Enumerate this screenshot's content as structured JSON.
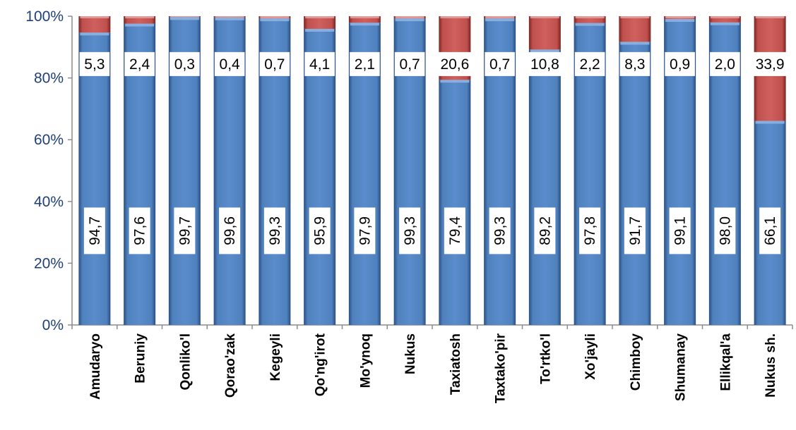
{
  "chart_data": {
    "type": "bar",
    "stacked": true,
    "percent_stacked": true,
    "categories": [
      "Amudaryo",
      "Beruniy",
      "Qonliko'l",
      "Qorao'zak",
      "Kegeyli",
      "Qo'ng'irot",
      "Mo'ynoq",
      "Nukus",
      "Taxiatosh",
      "Taxtako'pir",
      "To'rtko'l",
      "Xo'jayli",
      "Chimboy",
      "Shumanay",
      "Ellikqal'a",
      "Nukus sh."
    ],
    "series": [
      {
        "color": "#4f81bd",
        "values": [
          94.7,
          97.6,
          99.7,
          99.6,
          99.3,
          95.9,
          97.9,
          99.3,
          79.4,
          99.3,
          89.2,
          97.8,
          91.7,
          99.1,
          98.0,
          66.1
        ],
        "labels": [
          "94,7",
          "97,6",
          "99,7",
          "99,6",
          "99,3",
          "95,9",
          "97,9",
          "99,3",
          "79,4",
          "99,3",
          "89,2",
          "97,8",
          "91,7",
          "99,1",
          "98,0",
          "66,1"
        ]
      },
      {
        "color": "#c0504d",
        "values": [
          5.3,
          2.4,
          0.3,
          0.4,
          0.7,
          4.1,
          2.1,
          0.7,
          20.6,
          0.7,
          10.8,
          2.2,
          8.3,
          0.9,
          2.0,
          33.9
        ],
        "labels": [
          "5,3",
          "2,4",
          "0,3",
          "0,4",
          "0,7",
          "4,1",
          "2,1",
          "0,7",
          "20,6",
          "0,7",
          "10,8",
          "2,2",
          "8,3",
          "0,9",
          "2,0",
          "33,9"
        ]
      }
    ],
    "yticks": [
      "0%",
      "20%",
      "40%",
      "60%",
      "80%",
      "100%"
    ],
    "ylim": [
      0,
      100
    ],
    "title": "",
    "xlabel": "",
    "ylabel": "",
    "grid": false,
    "legend": "none"
  }
}
